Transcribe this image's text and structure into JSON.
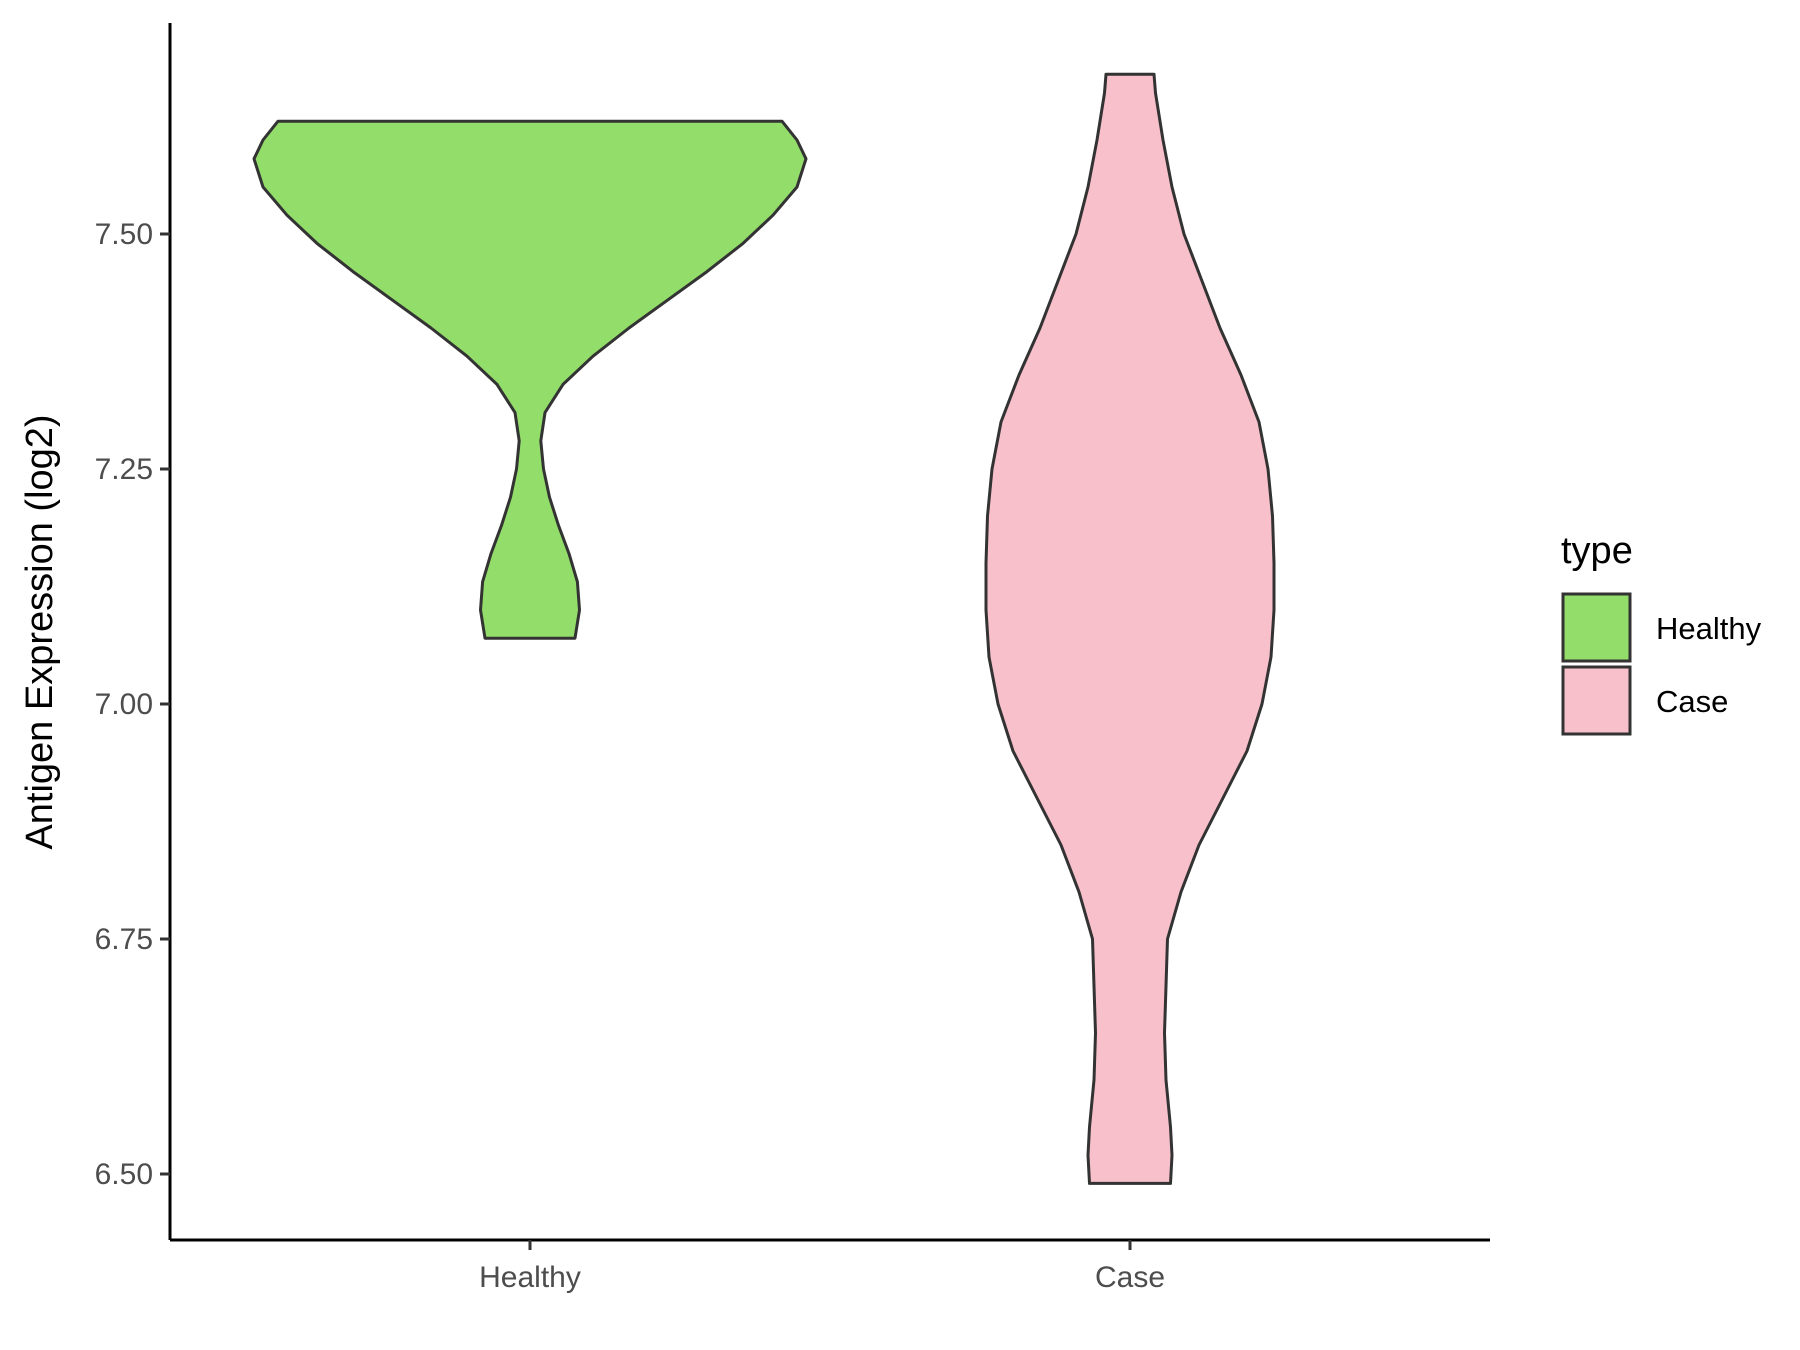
{
  "chart_data": {
    "type": "violin",
    "ylabel": "Antigen Expression (log2)",
    "xlabel": "",
    "categories": [
      "Healthy",
      "Case"
    ],
    "ylim": [
      6.43,
      7.73
    ],
    "y_ticks": [
      "6.50",
      "6.75",
      "7.00",
      "7.25",
      "7.50"
    ],
    "y_tick_values": [
      6.5,
      6.75,
      7.0,
      7.25,
      7.5
    ],
    "grid": false,
    "legend": {
      "title": "type",
      "position": "right",
      "entries": [
        "Healthy",
        "Case"
      ]
    },
    "series": [
      {
        "name": "Healthy",
        "color": "#93dd6a",
        "min": 7.07,
        "max": 7.62,
        "profile": [
          [
            7.07,
            0.15
          ],
          [
            7.1,
            0.165
          ],
          [
            7.13,
            0.158
          ],
          [
            7.16,
            0.13
          ],
          [
            7.19,
            0.095
          ],
          [
            7.22,
            0.065
          ],
          [
            7.25,
            0.045
          ],
          [
            7.28,
            0.036
          ],
          [
            7.31,
            0.05
          ],
          [
            7.34,
            0.11
          ],
          [
            7.37,
            0.21
          ],
          [
            7.4,
            0.33
          ],
          [
            7.43,
            0.46
          ],
          [
            7.46,
            0.59
          ],
          [
            7.49,
            0.71
          ],
          [
            7.52,
            0.81
          ],
          [
            7.55,
            0.89
          ],
          [
            7.58,
            0.92
          ],
          [
            7.6,
            0.89
          ],
          [
            7.62,
            0.84
          ]
        ]
      },
      {
        "name": "Case",
        "color": "#f7c0cb",
        "min": 6.49,
        "max": 7.67,
        "profile": [
          [
            6.49,
            0.135
          ],
          [
            6.52,
            0.14
          ],
          [
            6.55,
            0.135
          ],
          [
            6.6,
            0.12
          ],
          [
            6.65,
            0.115
          ],
          [
            6.7,
            0.12
          ],
          [
            6.75,
            0.125
          ],
          [
            6.8,
            0.17
          ],
          [
            6.85,
            0.23
          ],
          [
            6.9,
            0.31
          ],
          [
            6.95,
            0.39
          ],
          [
            7.0,
            0.44
          ],
          [
            7.05,
            0.47
          ],
          [
            7.1,
            0.48
          ],
          [
            7.15,
            0.48
          ],
          [
            7.2,
            0.475
          ],
          [
            7.25,
            0.46
          ],
          [
            7.3,
            0.43
          ],
          [
            7.35,
            0.37
          ],
          [
            7.4,
            0.3
          ],
          [
            7.45,
            0.24
          ],
          [
            7.5,
            0.18
          ],
          [
            7.55,
            0.14
          ],
          [
            7.6,
            0.11
          ],
          [
            7.65,
            0.085
          ],
          [
            7.67,
            0.08
          ]
        ]
      }
    ]
  },
  "colors": {
    "outline": "#333333",
    "axis": "#000000"
  }
}
